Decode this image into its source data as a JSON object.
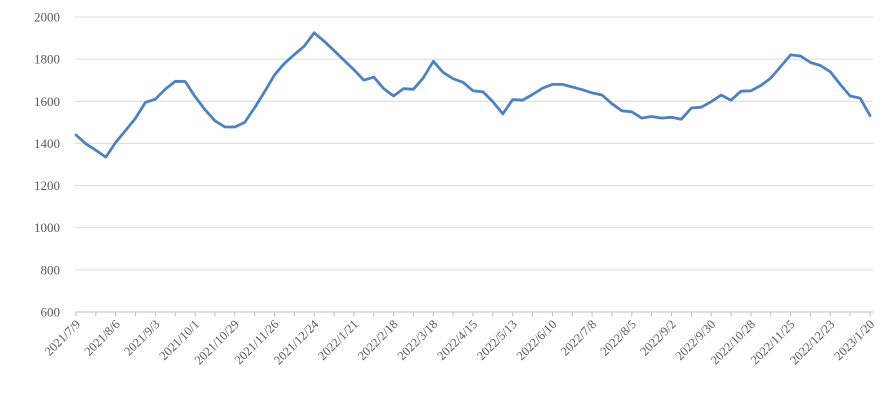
{
  "chart_data": {
    "type": "line",
    "title": "",
    "xlabel": "",
    "ylabel": "",
    "legend": "none",
    "grid": "horizontal",
    "ylim": [
      600,
      2000
    ],
    "yticks": [
      600,
      800,
      1000,
      1200,
      1400,
      1600,
      1800,
      2000
    ],
    "ytick_labels": [
      "600",
      "800",
      "1000",
      "1200",
      "1400",
      "1600",
      "1800",
      "2000"
    ],
    "xtick_label_every": 4,
    "xtick_minor_every": 2,
    "xtick_labels_visible": [
      "2021/7/9",
      "2021/8/6",
      "2021/9/3",
      "2021/10/1",
      "2021/10/29",
      "2021/11/26",
      "2021/12/24",
      "2022/1/21",
      "2022/2/18",
      "2022/3/18",
      "2022/4/15",
      "2022/5/13",
      "2022/6/10",
      "2022/7/8",
      "2022/8/5",
      "2022/9/2",
      "2022/9/30",
      "2022/10/28",
      "2022/11/25",
      "2022/12/23",
      "2023/1/20"
    ],
    "x": [
      "2021/7/9",
      "2021/7/16",
      "2021/7/23",
      "2021/7/30",
      "2021/8/6",
      "2021/8/13",
      "2021/8/20",
      "2021/8/27",
      "2021/9/3",
      "2021/9/10",
      "2021/9/17",
      "2021/9/24",
      "2021/10/1",
      "2021/10/8",
      "2021/10/15",
      "2021/10/22",
      "2021/10/29",
      "2021/11/5",
      "2021/11/12",
      "2021/11/19",
      "2021/11/26",
      "2021/12/3",
      "2021/12/10",
      "2021/12/17",
      "2021/12/24",
      "2021/12/31",
      "2022/1/7",
      "2022/1/14",
      "2022/1/21",
      "2022/1/28",
      "2022/2/4",
      "2022/2/11",
      "2022/2/18",
      "2022/2/25",
      "2022/3/4",
      "2022/3/11",
      "2022/3/18",
      "2022/3/25",
      "2022/4/1",
      "2022/4/8",
      "2022/4/15",
      "2022/4/22",
      "2022/4/29",
      "2022/5/6",
      "2022/5/13",
      "2022/5/20",
      "2022/5/27",
      "2022/6/3",
      "2022/6/10",
      "2022/6/17",
      "2022/6/24",
      "2022/7/1",
      "2022/7/8",
      "2022/7/15",
      "2022/7/22",
      "2022/7/29",
      "2022/8/5",
      "2022/8/12",
      "2022/8/19",
      "2022/8/26",
      "2022/9/2",
      "2022/9/9",
      "2022/9/16",
      "2022/9/23",
      "2022/9/30",
      "2022/10/7",
      "2022/10/14",
      "2022/10/21",
      "2022/10/28",
      "2022/11/4",
      "2022/11/11",
      "2022/11/18",
      "2022/11/25",
      "2022/12/2",
      "2022/12/9",
      "2022/12/16",
      "2022/12/23",
      "2022/12/30",
      "2023/1/6",
      "2023/1/13",
      "2023/1/20"
    ],
    "values": [
      1440,
      1398,
      1368,
      1335,
      1405,
      1462,
      1520,
      1595,
      1610,
      1658,
      1695,
      1694,
      1622,
      1560,
      1508,
      1478,
      1478,
      1500,
      1570,
      1645,
      1725,
      1780,
      1822,
      1862,
      1925,
      1885,
      1840,
      1795,
      1750,
      1700,
      1715,
      1660,
      1625,
      1660,
      1657,
      1712,
      1790,
      1737,
      1707,
      1690,
      1650,
      1645,
      1598,
      1540,
      1608,
      1605,
      1632,
      1662,
      1680,
      1680,
      1668,
      1655,
      1640,
      1630,
      1588,
      1555,
      1550,
      1520,
      1528,
      1520,
      1524,
      1515,
      1568,
      1572,
      1598,
      1630,
      1605,
      1648,
      1650,
      1675,
      1710,
      1765,
      1820,
      1815,
      1784,
      1770,
      1740,
      1680,
      1625,
      1615,
      1532
    ],
    "line_color": "#4F81BD",
    "gridline_color": "#D9D9D9",
    "axis_color": "#BFBFBF",
    "label_color": "#595959"
  }
}
